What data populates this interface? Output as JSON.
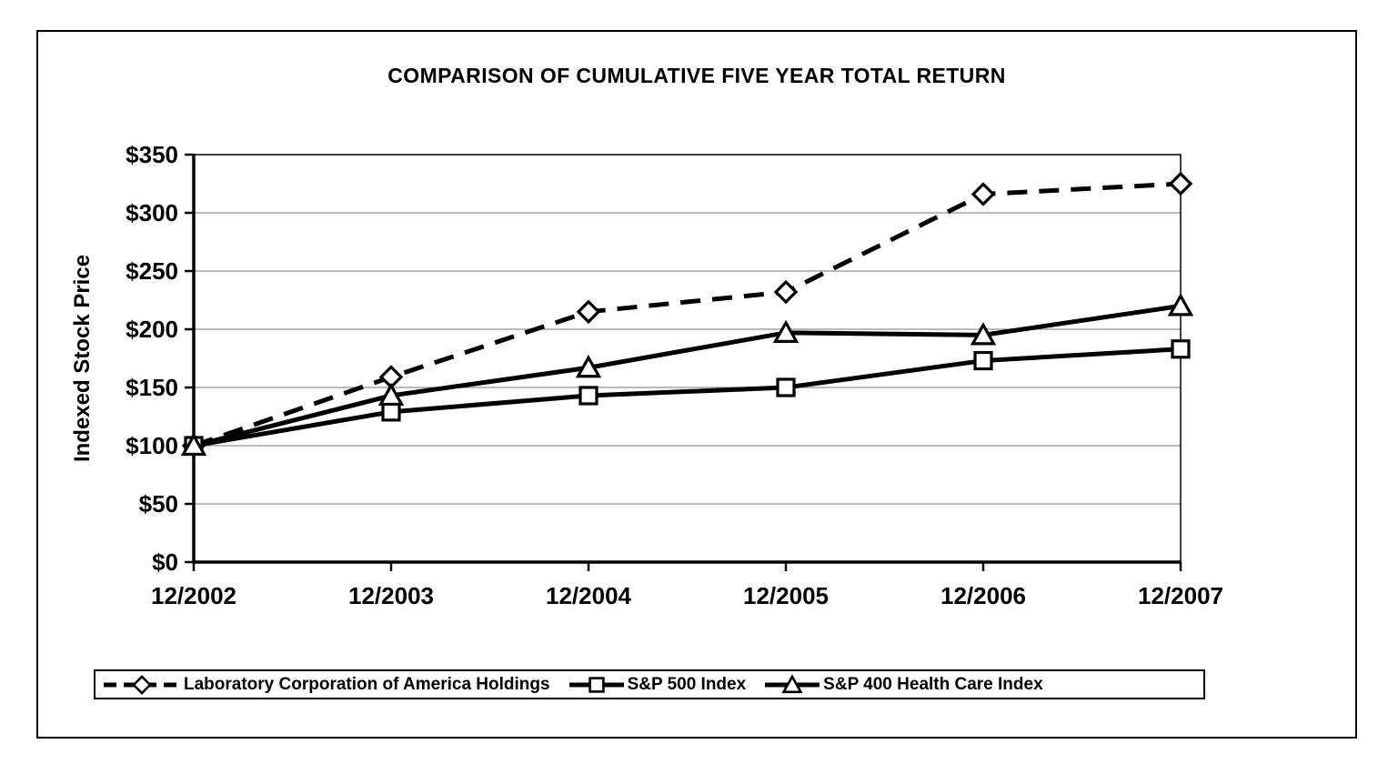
{
  "chart_data": {
    "type": "line",
    "title": "COMPARISON OF CUMULATIVE FIVE YEAR TOTAL RETURN",
    "xlabel": "",
    "ylabel": "Indexed Stock Price",
    "categories": [
      "12/2002",
      "12/2003",
      "12/2004",
      "12/2005",
      "12/2006",
      "12/2007"
    ],
    "series": [
      {
        "name": "Laboratory Corporation of America Holdings",
        "marker": "diamond",
        "line": "dashed",
        "values": [
          100,
          159,
          215,
          232,
          316,
          325
        ]
      },
      {
        "name": "S&P 500 Index",
        "marker": "square",
        "line": "solid",
        "values": [
          100,
          129,
          143,
          150,
          173,
          183
        ]
      },
      {
        "name": "S&P 400 Health Care Index",
        "marker": "triangle",
        "line": "solid",
        "values": [
          100,
          143,
          167,
          197,
          195,
          220
        ]
      }
    ],
    "y_ticks": [
      "$0",
      "$50",
      "$100",
      "$150",
      "$200",
      "$250",
      "$300",
      "$350"
    ],
    "ylim": [
      0,
      350
    ],
    "y_tick_step": 50,
    "grid": "horizontal-gray",
    "legend_position": "bottom",
    "colors": {
      "series": "#000000",
      "grid": "#909090",
      "frame": "#000000",
      "background": "#ffffff"
    }
  }
}
